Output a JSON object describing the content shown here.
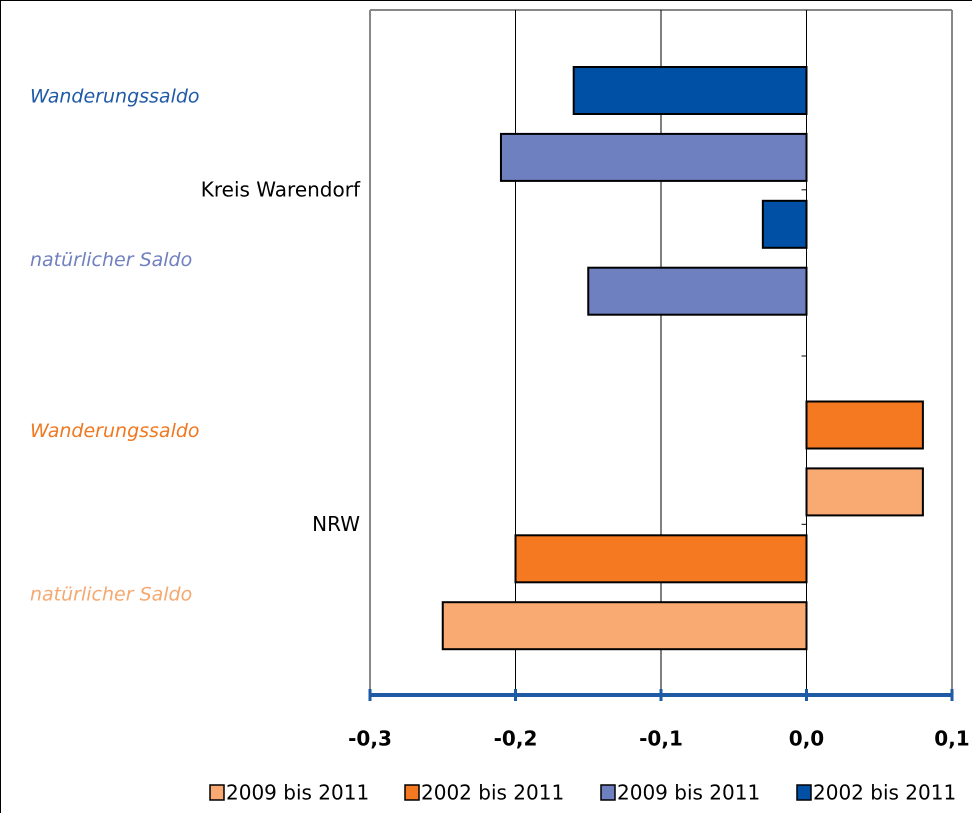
{
  "chart_data": {
    "type": "bar",
    "orientation": "horizontal",
    "group_labels": [
      "Kreis Warendorf",
      "NRW"
    ],
    "categories": [
      "Wanderungssaldo",
      "natürlicher Saldo",
      "Wanderungssaldo",
      "natürlicher Saldo"
    ],
    "category_colors": [
      "#1f5aa6",
      "#7080c0",
      "#f07820",
      "#f5a870"
    ],
    "series": [
      {
        "name": "2009 bis 2011",
        "color": "#f9aa72",
        "values": [
          null,
          null,
          0.08,
          -0.25
        ]
      },
      {
        "name": "2002 bis 2011",
        "color": "#f47920",
        "values": [
          null,
          null,
          0.08,
          -0.2
        ]
      },
      {
        "name": "2009 bis 2011",
        "color": "#6f80c0",
        "values": [
          -0.21,
          -0.15,
          null,
          null
        ]
      },
      {
        "name": "2002 bis 2011",
        "color": "#0050a5",
        "values": [
          -0.16,
          -0.03,
          null,
          null
        ]
      }
    ],
    "xlim": [
      -0.3,
      0.1
    ],
    "xticks": [
      {
        "value": -0.3,
        "label": "-0,3"
      },
      {
        "value": -0.2,
        "label": "-0,2"
      },
      {
        "value": -0.1,
        "label": "-0,1"
      },
      {
        "value": 0.0,
        "label": "0,0"
      },
      {
        "value": 0.1,
        "label": "0,1"
      }
    ],
    "grid": true,
    "legend": "bottom"
  }
}
